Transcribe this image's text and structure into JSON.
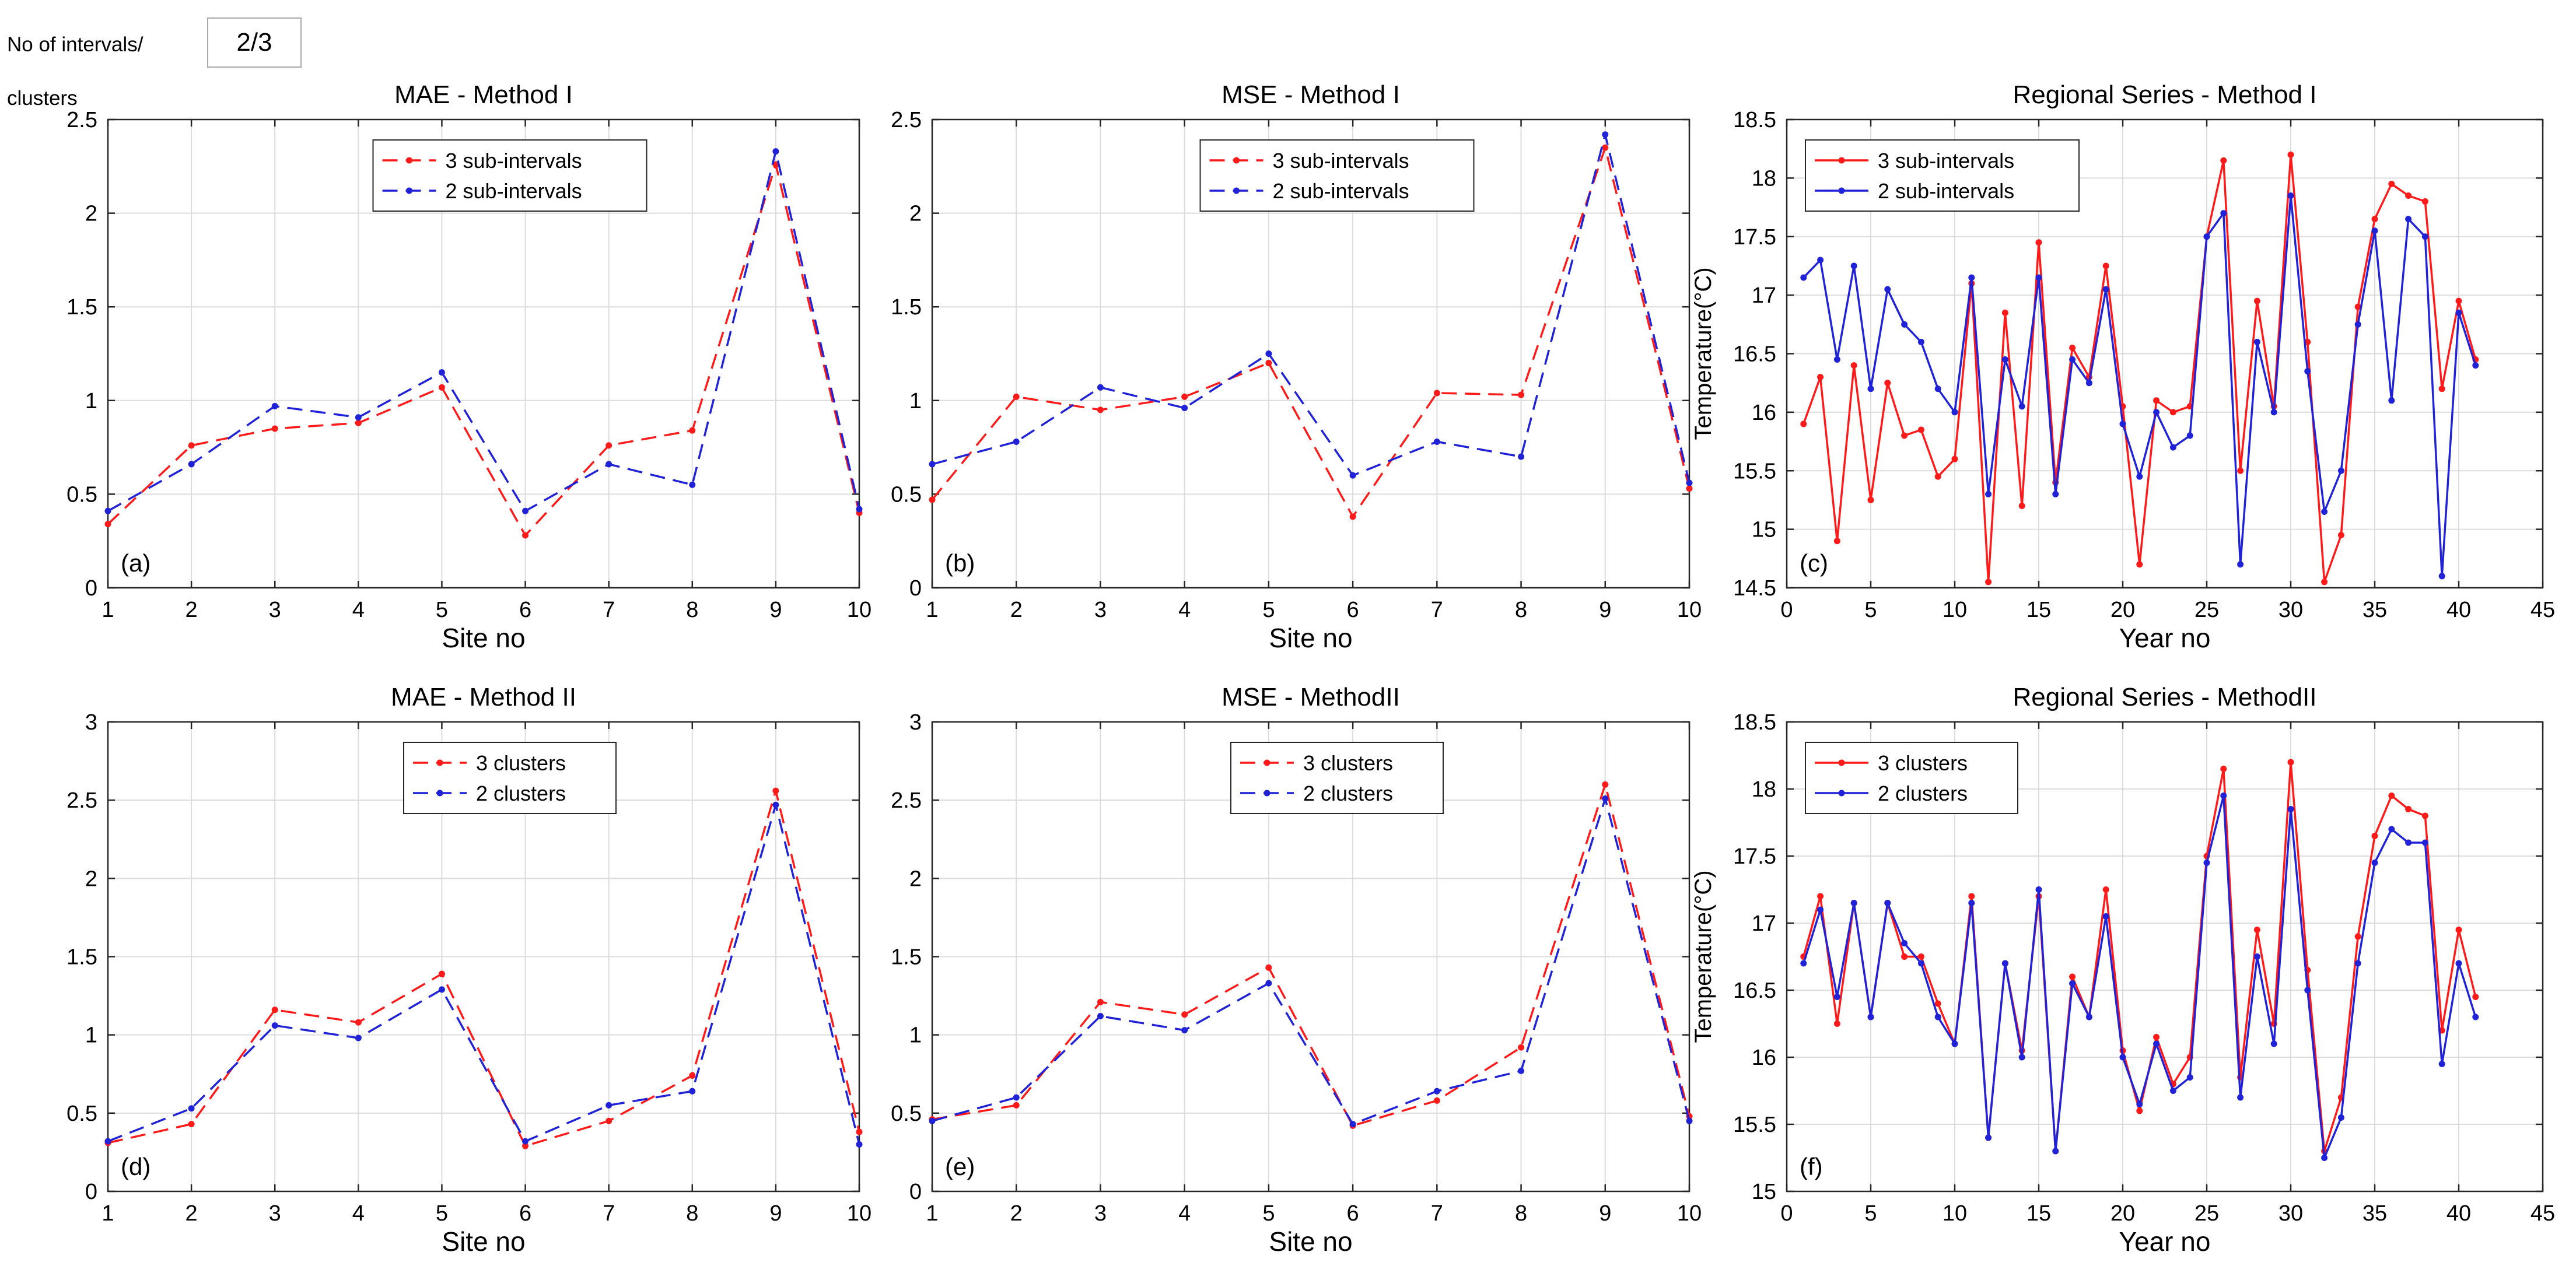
{
  "header": {
    "count_label_line1": "No of intervals/",
    "count_label_line2": "clusters",
    "count_value": "2/3"
  },
  "colors": {
    "red": "#ff1a1a",
    "blue": "#1f22d6",
    "grid": "#dcdcdc",
    "axis": "#262626"
  },
  "chart_data": [
    {
      "id": "a",
      "type": "line",
      "title": "MAE - Method I",
      "xlabel": "Site no",
      "ylabel": "",
      "panel_label": "(a)",
      "xlim": [
        1,
        10
      ],
      "ylim": [
        0,
        2.5
      ],
      "xticks": [
        1,
        2,
        3,
        4,
        5,
        6,
        7,
        8,
        9,
        10
      ],
      "yticks": [
        0,
        0.5,
        1,
        1.5,
        2,
        2.5
      ],
      "ytick_labels": [
        "0",
        "0.5",
        "1",
        "1.5",
        "2",
        "2.5"
      ],
      "line_style": "dashed",
      "legend_position": "top-center",
      "x": [
        1,
        2,
        3,
        4,
        5,
        6,
        7,
        8,
        9,
        10
      ],
      "series": [
        {
          "name": "3 sub-intervals",
          "color": "red",
          "values": [
            0.34,
            0.76,
            0.85,
            0.88,
            1.07,
            0.28,
            0.76,
            0.84,
            2.26,
            0.4
          ]
        },
        {
          "name": "2 sub-intervals",
          "color": "blue",
          "values": [
            0.41,
            0.66,
            0.97,
            0.91,
            1.15,
            0.41,
            0.66,
            0.55,
            2.33,
            0.42
          ]
        }
      ]
    },
    {
      "id": "b",
      "type": "line",
      "title": "MSE -  Method I",
      "xlabel": "Site no",
      "ylabel": "",
      "panel_label": "(b)",
      "xlim": [
        1,
        10
      ],
      "ylim": [
        0,
        2.5
      ],
      "xticks": [
        1,
        2,
        3,
        4,
        5,
        6,
        7,
        8,
        9,
        10
      ],
      "yticks": [
        0,
        0.5,
        1,
        1.5,
        2,
        2.5
      ],
      "ytick_labels": [
        "0",
        "0.5",
        "1",
        "1.5",
        "2",
        "2.5"
      ],
      "line_style": "dashed",
      "legend_position": "top-center",
      "x": [
        1,
        2,
        3,
        4,
        5,
        6,
        7,
        8,
        9,
        10
      ],
      "series": [
        {
          "name": "3 sub-intervals",
          "color": "red",
          "values": [
            0.47,
            1.02,
            0.95,
            1.02,
            1.2,
            0.38,
            1.04,
            1.03,
            2.35,
            0.53
          ]
        },
        {
          "name": "2 sub-intervals",
          "color": "blue",
          "values": [
            0.66,
            0.78,
            1.07,
            0.96,
            1.25,
            0.6,
            0.78,
            0.7,
            2.42,
            0.56
          ]
        }
      ]
    },
    {
      "id": "c",
      "type": "line",
      "title": "Regional Series - Method I",
      "xlabel": "Year no",
      "ylabel": "Temperature(°C)",
      "panel_label": "(c)",
      "xlim": [
        0,
        45
      ],
      "ylim": [
        14.5,
        18.5
      ],
      "xticks": [
        0,
        5,
        10,
        15,
        20,
        25,
        30,
        35,
        40,
        45
      ],
      "yticks": [
        14.5,
        15,
        15.5,
        16,
        16.5,
        17,
        17.5,
        18,
        18.5
      ],
      "ytick_labels": [
        "14.5",
        "15",
        "15.5",
        "16",
        "16.5",
        "17",
        "17.5",
        "18",
        "18.5"
      ],
      "line_style": "solid",
      "legend_position": "top-left",
      "x": [
        1,
        2,
        3,
        4,
        5,
        6,
        7,
        8,
        9,
        10,
        11,
        12,
        13,
        14,
        15,
        16,
        17,
        18,
        19,
        20,
        21,
        22,
        23,
        24,
        25,
        26,
        27,
        28,
        29,
        30,
        31,
        32,
        33,
        34,
        35,
        36,
        37,
        38,
        39,
        40,
        41
      ],
      "series": [
        {
          "name": "3 sub-intervals",
          "color": "red",
          "values": [
            15.9,
            16.3,
            14.9,
            16.4,
            15.25,
            16.25,
            15.8,
            15.85,
            15.45,
            15.6,
            17.1,
            14.55,
            16.85,
            15.2,
            17.45,
            15.4,
            16.55,
            16.3,
            17.25,
            16.05,
            14.7,
            16.1,
            16.0,
            16.05,
            17.5,
            18.15,
            15.5,
            16.95,
            16.05,
            18.2,
            16.6,
            14.55,
            14.95,
            16.9,
            17.65,
            17.95,
            17.85,
            17.8,
            16.2,
            16.95,
            16.45
          ]
        },
        {
          "name": "2 sub-intervals",
          "color": "blue",
          "values": [
            17.15,
            17.3,
            16.45,
            17.25,
            16.2,
            17.05,
            16.75,
            16.6,
            16.2,
            16.0,
            17.15,
            15.3,
            16.45,
            16.05,
            17.15,
            15.3,
            16.45,
            16.25,
            17.05,
            15.9,
            15.45,
            16.0,
            15.7,
            15.8,
            17.5,
            17.7,
            14.7,
            16.6,
            16.0,
            17.85,
            16.35,
            15.15,
            15.5,
            16.75,
            17.55,
            16.1,
            17.65,
            17.5,
            14.6,
            16.85,
            16.4
          ]
        }
      ]
    },
    {
      "id": "d",
      "type": "line",
      "title": "MAE - Method II",
      "xlabel": "Site no",
      "ylabel": "",
      "panel_label": "(d)",
      "xlim": [
        1,
        10
      ],
      "ylim": [
        0,
        3
      ],
      "xticks": [
        1,
        2,
        3,
        4,
        5,
        6,
        7,
        8,
        9,
        10
      ],
      "yticks": [
        0,
        0.5,
        1,
        1.5,
        2,
        2.5,
        3
      ],
      "ytick_labels": [
        "0",
        "0.5",
        "1",
        "1.5",
        "2",
        "2.5",
        "3"
      ],
      "line_style": "dashed",
      "legend_position": "top-center",
      "x": [
        1,
        2,
        3,
        4,
        5,
        6,
        7,
        8,
        9,
        10
      ],
      "series": [
        {
          "name": "3 clusters",
          "color": "red",
          "values": [
            0.31,
            0.43,
            1.16,
            1.08,
            1.39,
            0.29,
            0.45,
            0.74,
            2.56,
            0.38
          ]
        },
        {
          "name": "2 clusters",
          "color": "blue",
          "values": [
            0.32,
            0.53,
            1.06,
            0.98,
            1.29,
            0.32,
            0.55,
            0.64,
            2.47,
            0.3
          ]
        }
      ]
    },
    {
      "id": "e",
      "type": "line",
      "title": "MSE -  MethodII",
      "xlabel": "Site no",
      "ylabel": "",
      "panel_label": "(e)",
      "xlim": [
        1,
        10
      ],
      "ylim": [
        0,
        3
      ],
      "xticks": [
        1,
        2,
        3,
        4,
        5,
        6,
        7,
        8,
        9,
        10
      ],
      "yticks": [
        0,
        0.5,
        1,
        1.5,
        2,
        2.5,
        3
      ],
      "ytick_labels": [
        "0",
        "0.5",
        "1",
        "1.5",
        "2",
        "2.5",
        "3"
      ],
      "line_style": "dashed",
      "legend_position": "top-center",
      "x": [
        1,
        2,
        3,
        4,
        5,
        6,
        7,
        8,
        9,
        10
      ],
      "series": [
        {
          "name": "3 clusters",
          "color": "red",
          "values": [
            0.46,
            0.55,
            1.21,
            1.13,
            1.43,
            0.42,
            0.58,
            0.92,
            2.6,
            0.48
          ]
        },
        {
          "name": "2 clusters",
          "color": "blue",
          "values": [
            0.45,
            0.6,
            1.12,
            1.03,
            1.33,
            0.43,
            0.64,
            0.77,
            2.51,
            0.45
          ]
        }
      ]
    },
    {
      "id": "f",
      "type": "line",
      "title": "Regional Series - MethodII",
      "xlabel": "Year no",
      "ylabel": "Temperature(°C)",
      "panel_label": "(f)",
      "xlim": [
        0,
        45
      ],
      "ylim": [
        15,
        18.5
      ],
      "xticks": [
        0,
        5,
        10,
        15,
        20,
        25,
        30,
        35,
        40,
        45
      ],
      "yticks": [
        15,
        15.5,
        16,
        16.5,
        17,
        17.5,
        18,
        18.5
      ],
      "ytick_labels": [
        "15",
        "15.5",
        "16",
        "16.5",
        "17",
        "17.5",
        "18",
        "18.5"
      ],
      "line_style": "solid",
      "legend_position": "top-left",
      "x": [
        1,
        2,
        3,
        4,
        5,
        6,
        7,
        8,
        9,
        10,
        11,
        12,
        13,
        14,
        15,
        16,
        17,
        18,
        19,
        20,
        21,
        22,
        23,
        24,
        25,
        26,
        27,
        28,
        29,
        30,
        31,
        32,
        33,
        34,
        35,
        36,
        37,
        38,
        39,
        40,
        41
      ],
      "series": [
        {
          "name": "3 clusters",
          "color": "red",
          "values": [
            16.75,
            17.2,
            16.25,
            17.15,
            16.3,
            17.15,
            16.75,
            16.75,
            16.4,
            16.1,
            17.2,
            15.4,
            16.7,
            16.05,
            17.2,
            15.3,
            16.6,
            16.3,
            17.25,
            16.05,
            15.6,
            16.15,
            15.8,
            16.0,
            17.5,
            18.15,
            15.85,
            16.95,
            16.25,
            18.2,
            16.65,
            15.3,
            15.7,
            16.9,
            17.65,
            17.95,
            17.85,
            17.8,
            16.2,
            16.95,
            16.45
          ]
        },
        {
          "name": "2 clusters",
          "color": "blue",
          "values": [
            16.7,
            17.1,
            16.45,
            17.15,
            16.3,
            17.15,
            16.85,
            16.7,
            16.3,
            16.1,
            17.15,
            15.4,
            16.7,
            16.0,
            17.25,
            15.3,
            16.55,
            16.3,
            17.05,
            16.0,
            15.65,
            16.1,
            15.75,
            15.85,
            17.45,
            17.95,
            15.7,
            16.75,
            16.1,
            17.85,
            16.5,
            15.25,
            15.55,
            16.7,
            17.45,
            17.7,
            17.6,
            17.6,
            15.95,
            16.7,
            16.3
          ]
        }
      ]
    }
  ]
}
